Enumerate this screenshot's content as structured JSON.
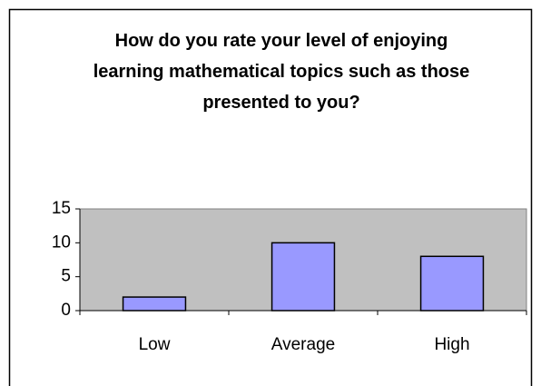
{
  "chart_data": {
    "type": "bar",
    "title": "How do you rate your level of enjoying learning mathematical topics such as those presented to you?",
    "categories": [
      "Low",
      "Average",
      "High"
    ],
    "values": [
      2,
      10,
      8
    ],
    "color": "#9999ff",
    "ylim": [
      0,
      15
    ],
    "yticks": [
      0,
      5,
      10,
      15
    ]
  }
}
